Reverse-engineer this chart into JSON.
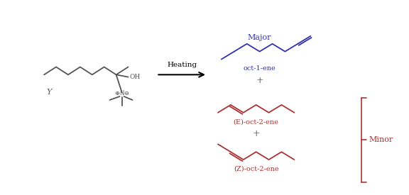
{
  "bg_color": "#ffffff",
  "reactant_color": "#555555",
  "major_color": "#3333aa",
  "minor_color": "#aa3333",
  "heating_label": "Heating",
  "major_label": "Major",
  "minor_label": "Minor",
  "oct1ene_label": "oct-1-ene",
  "eOct2ene_label": "(E)-oct-2-ene",
  "zOct2ene_label": "(Z)-oct-2-ene",
  "plus_label": "+",
  "Y_label": "Y",
  "OH_label": "OH"
}
